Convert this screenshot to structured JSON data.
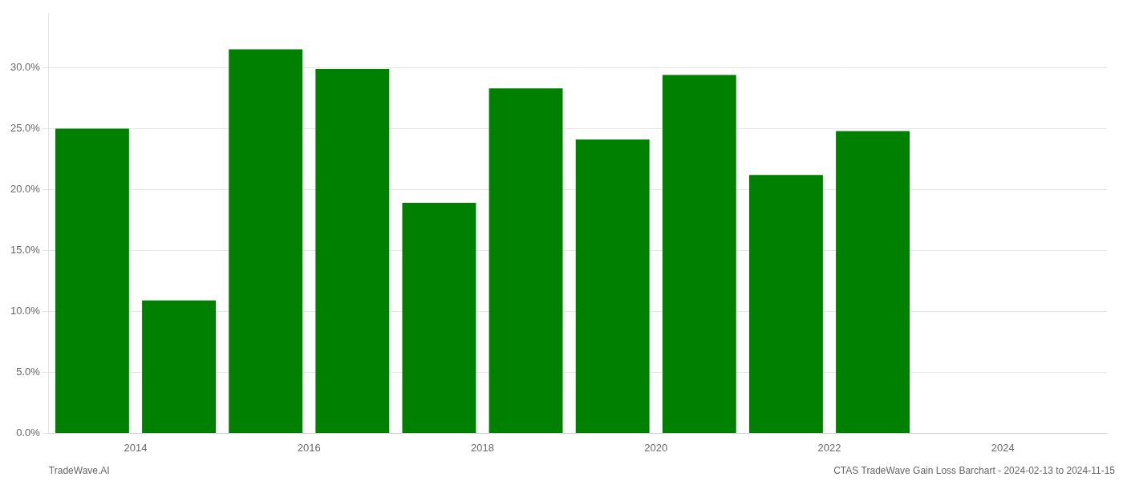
{
  "chart_data": {
    "type": "bar",
    "x": [
      2013.5,
      2014.5,
      2015.5,
      2016.5,
      2017.5,
      2018.5,
      2019.5,
      2020.5,
      2021.5,
      2022.5,
      2023.5
    ],
    "values": [
      0.25,
      0.109,
      0.315,
      0.299,
      0.189,
      0.283,
      0.241,
      0.294,
      0.212,
      0.248,
      null
    ],
    "color": "#008000",
    "xlim": [
      2013.0,
      2025.2
    ],
    "xticks": [
      2014,
      2016,
      2018,
      2020,
      2022,
      2024
    ],
    "ylim": [
      0,
      0.345
    ],
    "yticks": [
      {
        "value": 0.0,
        "label": "0.0%"
      },
      {
        "value": 0.05,
        "label": "5.0%"
      },
      {
        "value": 0.1,
        "label": "10.0%"
      },
      {
        "value": 0.15,
        "label": "15.0%"
      },
      {
        "value": 0.2,
        "label": "20.0%"
      },
      {
        "value": 0.25,
        "label": "25.0%"
      },
      {
        "value": 0.3,
        "label": "30.0%"
      }
    ],
    "grid": "y",
    "annotations": [
      "TradeWave.AI",
      "CTAS TradeWave Gain Loss Barchart - 2024-02-13 to 2024-11-15"
    ]
  }
}
